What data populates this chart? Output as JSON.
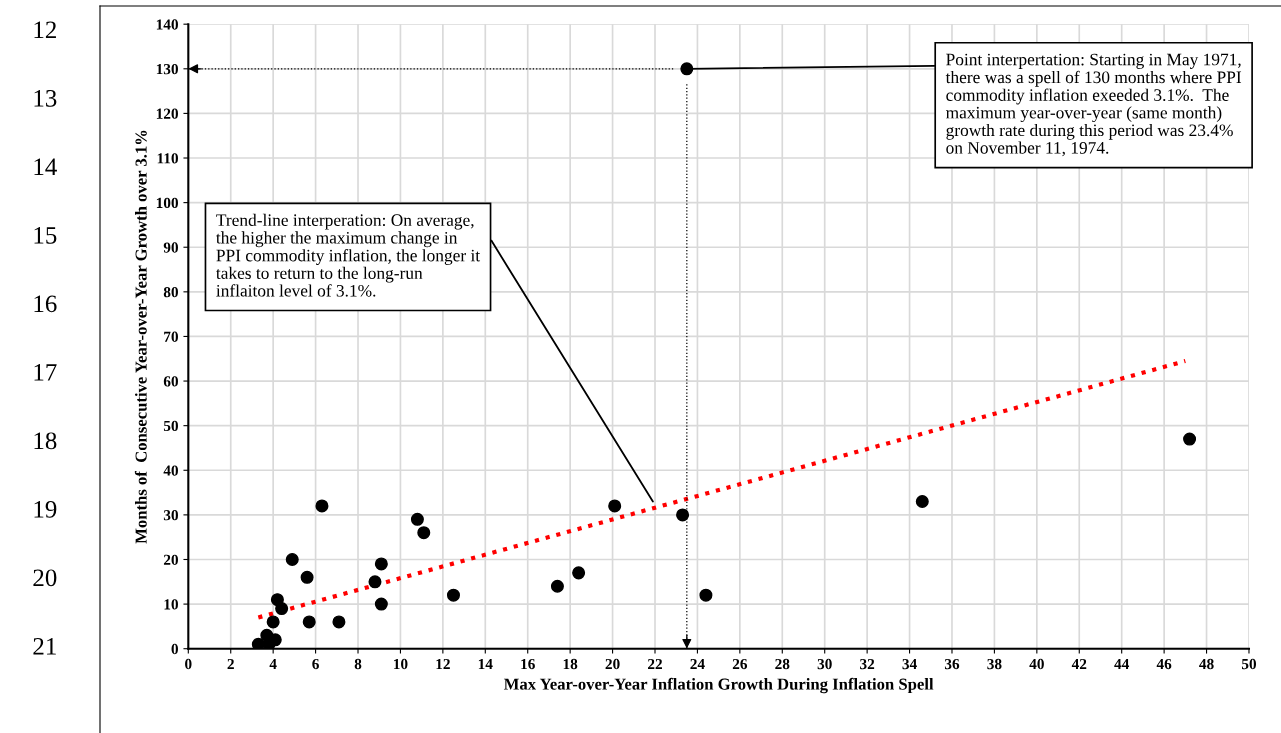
{
  "chart_data": {
    "type": "scatter",
    "xlabel": "Max Year-over-Year Inflation Growth During Inflation Spell",
    "ylabel": "Months of  Consecutive Year-over-Year Growth over 3.1%",
    "x": [
      3.3,
      3.7,
      3.8,
      4.1,
      4.0,
      4.2,
      4.4,
      4.9,
      5.6,
      5.7,
      6.3,
      7.1,
      8.8,
      9.1,
      9.1,
      10.8,
      11.1,
      12.5,
      17.4,
      18.4,
      20.1,
      23.3,
      24.4,
      34.6,
      47.2,
      23.5
    ],
    "series": [
      {
        "type": "scatter",
        "color": "#000000",
        "marker": "circle",
        "values": [
          1,
          3,
          1,
          2,
          6,
          11,
          9,
          20,
          16,
          6,
          32,
          6,
          15,
          19,
          10,
          29,
          26,
          12,
          14,
          17,
          32,
          30,
          12,
          33,
          47,
          130
        ]
      },
      {
        "type": "line",
        "color": "#ff0000",
        "line_style": "dotted",
        "marker": "none",
        "x": [
          3.3,
          47.0
        ],
        "values": [
          7,
          64.5
        ]
      }
    ],
    "xlim": [
      0,
      50
    ],
    "xticks": [
      0,
      2,
      4,
      6,
      8,
      10,
      12,
      14,
      16,
      18,
      20,
      22,
      24,
      26,
      28,
      30,
      32,
      34,
      36,
      38,
      40,
      42,
      44,
      46,
      48,
      50
    ],
    "ylim": [
      0,
      140
    ],
    "yticks": [
      0,
      10,
      20,
      30,
      40,
      50,
      60,
      70,
      80,
      90,
      100,
      110,
      120,
      130,
      140
    ],
    "grid": true,
    "legend": false,
    "ref_lines": [
      {
        "axis": "y",
        "value": 130,
        "color": "#000000",
        "line_style": "dotted"
      },
      {
        "axis": "x",
        "value": 23.5,
        "color": "#000000",
        "line_style": "dotted"
      }
    ],
    "annotations": [
      {
        "text": "Point interpertation: Starting in May 1971, there was a spell of 130 months where PPI commodity inflation exeeded 3.1%.  The maximum year-over-year (same month) growth rate during this period was 23.4% on November 11, 1974.",
        "x": 23.5,
        "y": 130
      },
      {
        "text": "Trend-line interperation: On average, the higher the maximum change in PPI commodity inflation, the longer it takes to return to the long-run inflaiton level of 3.1%.",
        "x": 21.9,
        "y": 33
      },
      "12",
      "13",
      "14",
      "15",
      "16",
      "17",
      "18",
      "19",
      "20",
      "21"
    ]
  }
}
